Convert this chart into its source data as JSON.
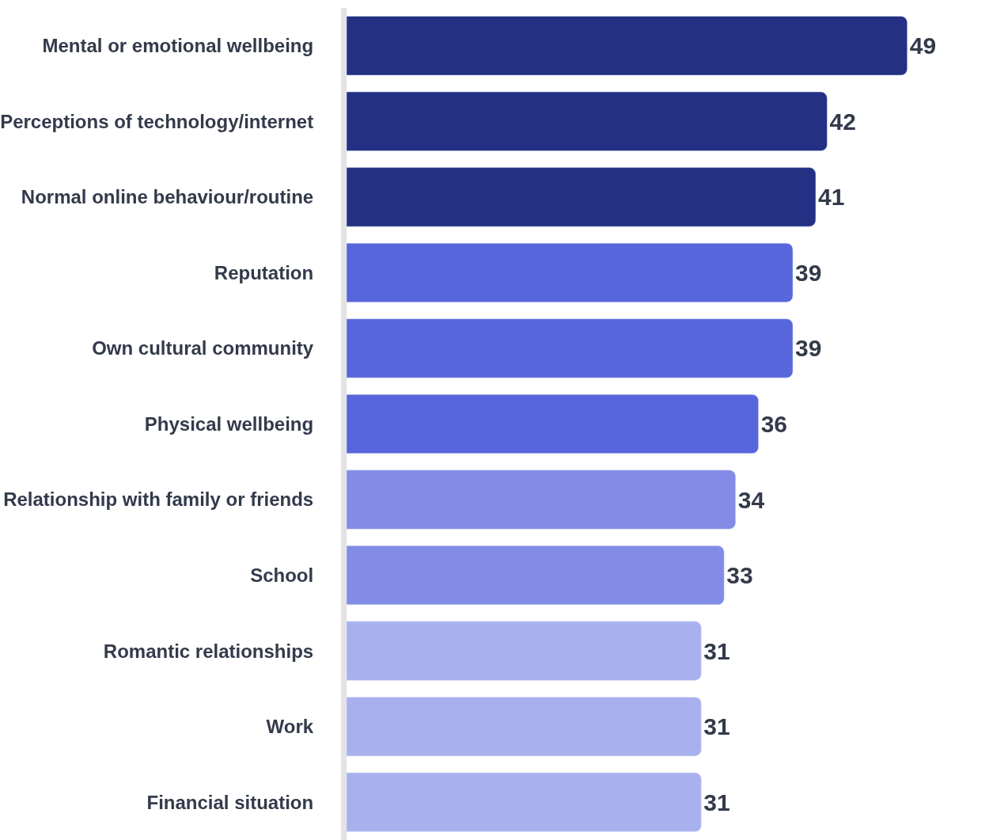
{
  "chart_data": {
    "type": "bar",
    "orientation": "horizontal",
    "data_labels": true,
    "legend": false,
    "categories": [
      "Mental or emotional wellbeing",
      "Perceptions of technology/internet",
      "Normal online behaviour/routine",
      "Reputation",
      "Own cultural community",
      "Physical wellbeing",
      "Relationship with family or friends",
      "School",
      "Romantic relationships",
      "Work",
      "Financial situation"
    ],
    "values": [
      49,
      42,
      41,
      39,
      39,
      36,
      34,
      33,
      31,
      31,
      31
    ],
    "colors": [
      "#233084",
      "#233084",
      "#233084",
      "#5766db",
      "#5766db",
      "#5766db",
      "#828ce6",
      "#828ce6",
      "#a9b0ee",
      "#a9b0ee",
      "#a9b0ee"
    ]
  }
}
